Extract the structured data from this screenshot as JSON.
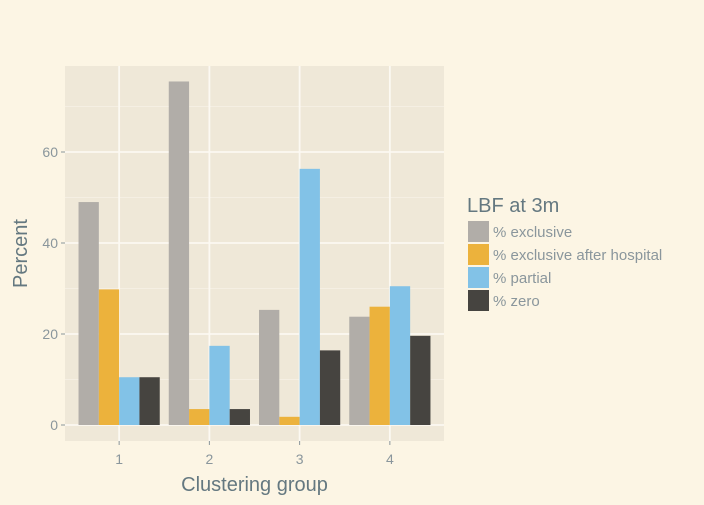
{
  "chart_data": {
    "type": "bar",
    "xlabel": "Clustering group",
    "ylabel": "Percent",
    "categories": [
      "1",
      "2",
      "3",
      "4"
    ],
    "ylim": [
      -3.5,
      79
    ],
    "yticks": [
      0,
      20,
      40,
      60
    ],
    "grid": true,
    "legend": {
      "title": "LBF at 3m",
      "placement": "right"
    },
    "series": [
      {
        "name": "% exclusive",
        "color": "#b1ada8",
        "values": [
          49,
          75.5,
          25.3,
          23.8
        ]
      },
      {
        "name": "% exclusive after hospital",
        "color": "#ecb23c",
        "values": [
          29.8,
          3.5,
          1.8,
          26
        ]
      },
      {
        "name": "% partial",
        "color": "#82c2e7",
        "values": [
          10.5,
          17.4,
          56.3,
          30.5
        ]
      },
      {
        "name": "% zero",
        "color": "#464440",
        "values": [
          10.5,
          3.5,
          16.4,
          19.6
        ]
      }
    ]
  },
  "colors": {
    "background": "#fcf5e4",
    "panel": "#efe8d8",
    "grid": "#fcf9f2"
  }
}
